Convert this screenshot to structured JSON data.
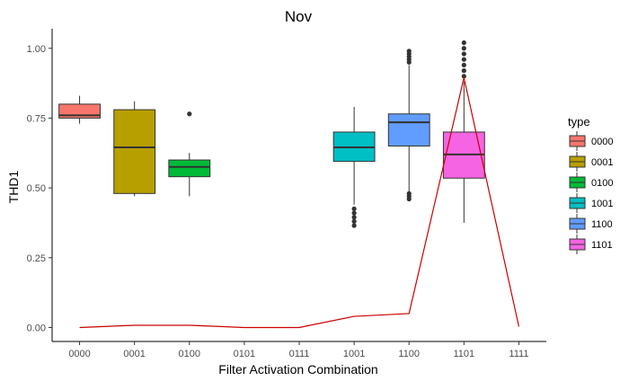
{
  "chart_data": {
    "type": "box",
    "title": "Nov",
    "xlabel": "Filter Activation Combination",
    "ylabel": "THD1",
    "categories": [
      "0000",
      "0001",
      "0100",
      "0101",
      "0111",
      "1001",
      "1100",
      "1101",
      "1111"
    ],
    "ylim": [
      -0.05,
      1.07
    ],
    "yticks": [
      0.0,
      0.25,
      0.5,
      0.75,
      1.0
    ],
    "ytick_labels": [
      "0.00",
      "0.25",
      "0.50",
      "0.75",
      "1.00"
    ],
    "grid": false,
    "legend": {
      "title": "type",
      "position": "right",
      "entries": [
        "0000",
        "0001",
        "0100",
        "1001",
        "1100",
        "1101"
      ]
    },
    "boxes": [
      {
        "category": "0000",
        "type": "0000",
        "color": "#F8766D",
        "whisker_low": 0.73,
        "q1": 0.75,
        "median": 0.76,
        "q3": 0.8,
        "whisker_high": 0.83,
        "outliers": []
      },
      {
        "category": "0001",
        "type": "0001",
        "color": "#B79F00",
        "whisker_low": 0.47,
        "q1": 0.48,
        "median": 0.645,
        "q3": 0.78,
        "whisker_high": 0.81,
        "outliers": []
      },
      {
        "category": "0100",
        "type": "0100",
        "color": "#00BA38",
        "whisker_low": 0.47,
        "q1": 0.54,
        "median": 0.575,
        "q3": 0.6,
        "whisker_high": 0.625,
        "outliers": [
          0.765
        ]
      },
      {
        "category": "1001",
        "type": "1001",
        "color": "#00BFC4",
        "whisker_low": 0.44,
        "q1": 0.595,
        "median": 0.645,
        "q3": 0.7,
        "whisker_high": 0.79,
        "outliers": [
          0.365,
          0.38,
          0.395,
          0.41,
          0.425
        ]
      },
      {
        "category": "1100",
        "type": "1100",
        "color": "#619CFF",
        "whisker_low": 0.48,
        "q1": 0.65,
        "median": 0.735,
        "q3": 0.765,
        "whisker_high": 0.94,
        "outliers": [
          0.46,
          0.47,
          0.48,
          0.95,
          0.96,
          0.97,
          0.98,
          0.99
        ]
      },
      {
        "category": "1101",
        "type": "1101",
        "color": "#F564E3",
        "whisker_low": 0.375,
        "q1": 0.535,
        "median": 0.62,
        "q3": 0.7,
        "whisker_high": 0.88,
        "outliers": [
          0.9,
          0.92,
          0.94,
          0.96,
          0.98,
          1.0,
          1.02
        ]
      }
    ],
    "line_series": {
      "color": "#CC0000",
      "values": [
        {
          "x": "0000",
          "y": 0.0
        },
        {
          "x": "0001",
          "y": 0.008
        },
        {
          "x": "0100",
          "y": 0.008
        },
        {
          "x": "0101",
          "y": 0.0
        },
        {
          "x": "0111",
          "y": 0.0
        },
        {
          "x": "1001",
          "y": 0.04
        },
        {
          "x": "1100",
          "y": 0.05
        },
        {
          "x": "1101",
          "y": 0.895
        },
        {
          "x": "1111",
          "y": 0.003
        }
      ]
    }
  }
}
